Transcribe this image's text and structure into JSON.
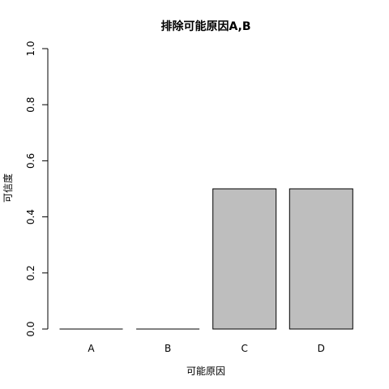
{
  "chart_data": {
    "type": "bar",
    "title": "排除可能原因A,B",
    "xlabel": "可能原因",
    "ylabel": "可信度",
    "categories": [
      "A",
      "B",
      "C",
      "D"
    ],
    "values": [
      0.0,
      0.0,
      0.5,
      0.5
    ],
    "ylim": [
      0,
      1
    ],
    "yticks": [
      "0.0",
      "0.2",
      "0.4",
      "0.6",
      "0.8",
      "1.0"
    ],
    "grid": false,
    "legend": "none",
    "colors": {
      "bar_fill": "#bebebe",
      "bar_stroke": "#000000",
      "axis": "#000000"
    }
  }
}
